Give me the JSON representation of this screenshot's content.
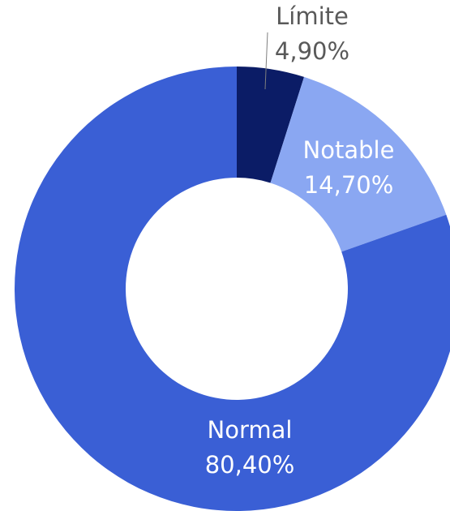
{
  "chart_data": {
    "type": "donut",
    "categories": [
      "Límite",
      "Notable",
      "Normal"
    ],
    "values": [
      4.9,
      14.7,
      80.4
    ],
    "value_labels": [
      "4,90%",
      "14,70%",
      "80,40%"
    ],
    "colors": [
      "#0b1c66",
      "#8aa7f2",
      "#3a5fd5"
    ]
  }
}
